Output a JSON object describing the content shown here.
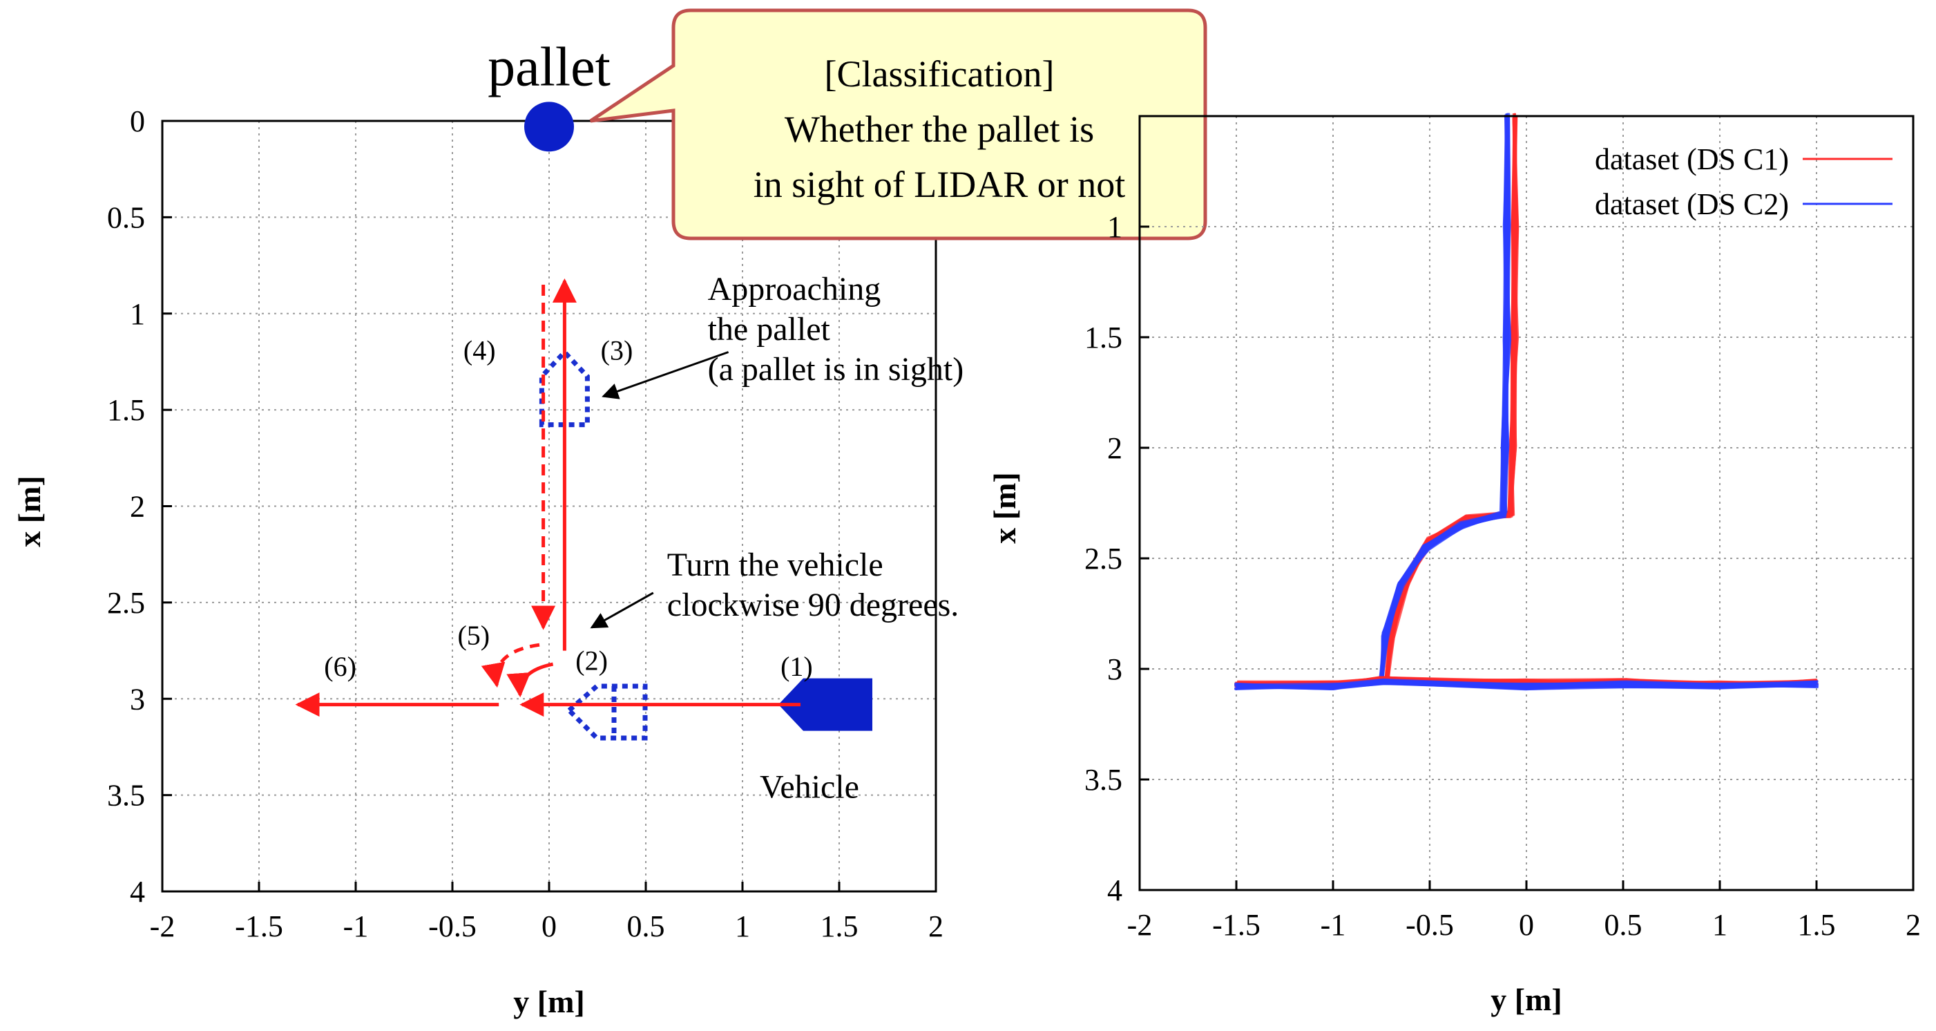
{
  "chart_data": [
    {
      "type": "line",
      "subtype": "path-diagram",
      "xlabel": "y [m]",
      "ylabel": "x [m]",
      "xlim": [
        -2,
        2
      ],
      "ylim": [
        0,
        4
      ],
      "y_inverted": true,
      "grid": true,
      "x_ticks": [
        "-2",
        "-1.5",
        "-1",
        "-0.5",
        "0",
        "0.5",
        "1",
        "1.5",
        "2"
      ],
      "y_ticks": [
        "0",
        "0.5",
        "1",
        "1.5",
        "2",
        "2.5",
        "3",
        "3.5",
        "4"
      ],
      "pallet": {
        "label": "pallet",
        "y": 0.0,
        "x": 0.03
      },
      "callout_lines": [
        "[Classification]",
        "Whether the pallet is",
        "in sight of LIDAR or not"
      ],
      "vehicle": {
        "label": "Vehicle",
        "y": 1.5,
        "x": 3.03
      },
      "step_labels": [
        {
          "text": "(1)",
          "y": 1.28,
          "x": 2.88
        },
        {
          "text": "(2)",
          "y": 0.22,
          "x": 2.85
        },
        {
          "text": "(3)",
          "y": 0.35,
          "x": 1.24
        },
        {
          "text": "(4)",
          "y": -0.36,
          "x": 1.24
        },
        {
          "text": "(5)",
          "y": -0.39,
          "x": 2.72
        },
        {
          "text": "(6)",
          "y": -1.08,
          "x": 2.88
        }
      ],
      "annotations": [
        {
          "lines": [
            "Approaching",
            "the pallet",
            "(a pallet is in sight)"
          ],
          "y": 0.82,
          "x": 0.93,
          "arrow_to": {
            "y": 0.28,
            "x": 1.43
          }
        },
        {
          "lines": [
            "Turn the vehicle",
            "clockwise 90 degrees."
          ],
          "y": 0.61,
          "x": 2.36,
          "arrow_to": {
            "y": 0.22,
            "x": 2.63
          }
        }
      ],
      "paths": [
        {
          "id": "move-1",
          "points": [
            [
              1.3,
              3.03
            ],
            [
              -0.14,
              3.03
            ]
          ],
          "style": "solid",
          "arrow": true
        },
        {
          "id": "move-6",
          "points": [
            [
              -0.26,
              3.03
            ],
            [
              -1.3,
              3.03
            ]
          ],
          "style": "solid",
          "arrow": true
        },
        {
          "id": "move-3",
          "points": [
            [
              0.08,
              2.75
            ],
            [
              0.08,
              0.83
            ]
          ],
          "style": "solid",
          "arrow": true
        },
        {
          "id": "move-4",
          "points": [
            [
              -0.03,
              0.85
            ],
            [
              -0.03,
              2.63
            ]
          ],
          "style": "dashed",
          "arrow": true
        }
      ]
    },
    {
      "type": "line",
      "xlabel": "y [m]",
      "ylabel": "x [m]",
      "xlim": [
        -2,
        2
      ],
      "ylim": [
        0.5,
        4
      ],
      "y_inverted": true,
      "grid": true,
      "legend": "top-right",
      "x_ticks": [
        "-2",
        "-1.5",
        "-1",
        "-0.5",
        "0",
        "0.5",
        "1",
        "1.5",
        "2"
      ],
      "y_ticks": [
        "1",
        "1.5",
        "2",
        "2.5",
        "3",
        "3.5",
        "4"
      ],
      "series": [
        {
          "name": "dataset (DS C1)",
          "color": "#ff2a2a",
          "points": [
            [
              -0.06,
              0.5
            ],
            [
              -0.06,
              1.0
            ],
            [
              -0.06,
              1.5
            ],
            [
              -0.07,
              2.0
            ],
            [
              -0.08,
              2.3
            ],
            [
              -0.3,
              2.32
            ],
            [
              -0.5,
              2.42
            ],
            [
              -0.62,
              2.6
            ],
            [
              -0.7,
              2.85
            ],
            [
              -0.72,
              3.05
            ]
          ]
        },
        {
          "name": "dataset (DS C2)",
          "color": "#2a3cff",
          "points": [
            [
              -0.1,
              0.5
            ],
            [
              -0.1,
              1.0
            ],
            [
              -0.1,
              1.5
            ],
            [
              -0.11,
              2.0
            ],
            [
              -0.12,
              2.3
            ],
            [
              -0.33,
              2.35
            ],
            [
              -0.52,
              2.45
            ],
            [
              -0.65,
              2.62
            ],
            [
              -0.73,
              2.85
            ],
            [
              -0.75,
              3.05
            ]
          ]
        },
        {
          "name": "dataset (DS C1)",
          "color": "#ff2a2a",
          "points": [
            [
              -1.5,
              3.07
            ],
            [
              -1.0,
              3.07
            ],
            [
              -0.75,
              3.05
            ],
            [
              0.0,
              3.06
            ],
            [
              0.5,
              3.06
            ],
            [
              1.0,
              3.07
            ],
            [
              1.5,
              3.06
            ]
          ]
        },
        {
          "name": "dataset (DS C2)",
          "color": "#2a3cff",
          "points": [
            [
              -1.5,
              3.08
            ],
            [
              -1.0,
              3.08
            ],
            [
              -0.75,
              3.06
            ],
            [
              0.0,
              3.08
            ],
            [
              0.5,
              3.07
            ],
            [
              1.0,
              3.08
            ],
            [
              1.5,
              3.07
            ]
          ]
        }
      ]
    }
  ]
}
